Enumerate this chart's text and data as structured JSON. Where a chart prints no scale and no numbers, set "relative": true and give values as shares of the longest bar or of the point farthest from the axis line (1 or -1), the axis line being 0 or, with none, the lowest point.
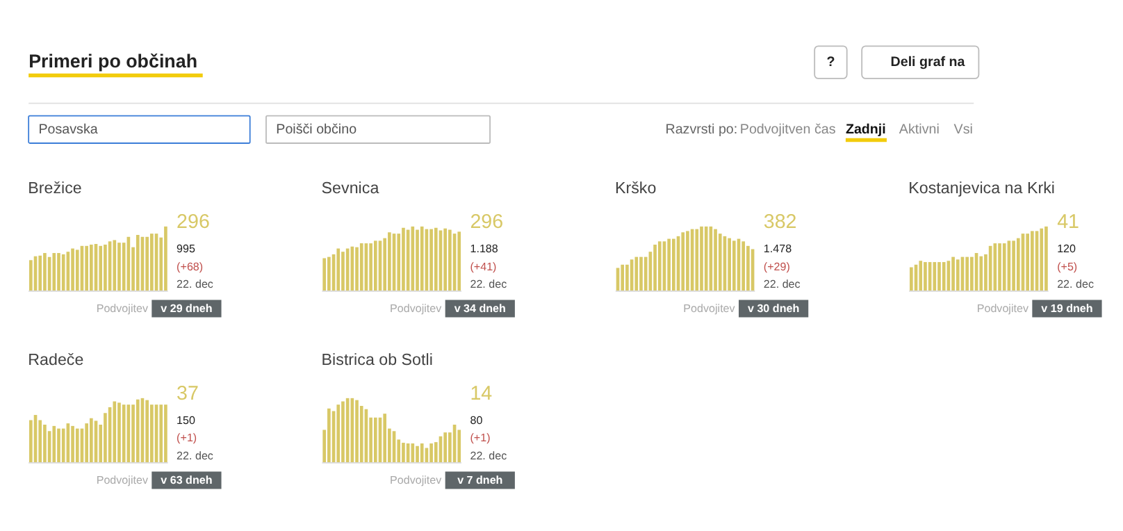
{
  "chart_data": [
    {
      "type": "other",
      "title": "Primeri po občinah",
      "annotations": [
        "?",
        "Deli graf na",
        "Posavska",
        "Poišči občino",
        "Razvrsti po:",
        "Podvojitven čas",
        "Zadnji",
        "Aktivni",
        "Vsi"
      ]
    },
    {
      "type": "bar",
      "relative": true,
      "title": "Brežice",
      "color": "#d8c866",
      "categories": [
        null,
        null,
        null,
        null,
        null,
        null,
        null,
        null,
        null,
        null,
        null,
        null,
        null,
        null,
        null,
        null,
        null,
        null,
        null,
        null,
        null,
        null,
        null,
        null,
        null,
        null,
        null,
        null,
        null,
        null
      ],
      "values": [
        0.48,
        0.54,
        0.55,
        0.59,
        0.53,
        0.59,
        0.59,
        0.57,
        0.61,
        0.66,
        0.64,
        0.7,
        0.7,
        0.72,
        0.73,
        0.7,
        0.72,
        0.77,
        0.79,
        0.75,
        0.75,
        0.84,
        0.68,
        0.87,
        0.84,
        0.84,
        0.89,
        0.89,
        0.83,
        1
      ],
      "annotations": [
        "296",
        "995",
        "(+68)",
        "22. dec",
        "Podvojitev",
        "v 29 dneh"
      ]
    },
    {
      "type": "bar",
      "relative": true,
      "title": "Sevnica",
      "color": "#d8c866",
      "categories": [
        null,
        null,
        null,
        null,
        null,
        null,
        null,
        null,
        null,
        null,
        null,
        null,
        null,
        null,
        null,
        null,
        null,
        null,
        null,
        null,
        null,
        null,
        null,
        null,
        null,
        null,
        null,
        null,
        null,
        null
      ],
      "values": [
        0.51,
        0.53,
        0.57,
        0.66,
        0.61,
        0.66,
        0.69,
        0.68,
        0.74,
        0.74,
        0.74,
        0.78,
        0.78,
        0.82,
        0.91,
        0.89,
        0.89,
        0.98,
        0.95,
        1,
        0.95,
        1,
        0.96,
        0.96,
        0.98,
        0.94,
        0.97,
        0.95,
        0.89,
        0.92
      ],
      "annotations": [
        "296",
        "1.188",
        "(+41)",
        "22. dec",
        "Podvojitev",
        "v 34 dneh"
      ]
    },
    {
      "type": "bar",
      "relative": true,
      "title": "Krško",
      "color": "#d8c866",
      "categories": [
        null,
        null,
        null,
        null,
        null,
        null,
        null,
        null,
        null,
        null,
        null,
        null,
        null,
        null,
        null,
        null,
        null,
        null,
        null,
        null,
        null,
        null,
        null,
        null,
        null,
        null,
        null,
        null,
        null,
        null
      ],
      "values": [
        0.36,
        0.41,
        0.41,
        0.49,
        0.53,
        0.53,
        0.53,
        0.61,
        0.72,
        0.77,
        0.77,
        0.81,
        0.81,
        0.85,
        0.91,
        0.93,
        0.96,
        0.96,
        1,
        1,
        1,
        0.96,
        0.89,
        0.85,
        0.82,
        0.78,
        0.81,
        0.77,
        0.7,
        0.65
      ],
      "annotations": [
        "382",
        "1.478",
        "(+29)",
        "22. dec",
        "Podvojitev",
        "v 30 dneh"
      ]
    },
    {
      "type": "bar",
      "relative": true,
      "title": "Kostanjevica na Krki",
      "color": "#d8c866",
      "categories": [
        null,
        null,
        null,
        null,
        null,
        null,
        null,
        null,
        null,
        null,
        null,
        null,
        null,
        null,
        null,
        null,
        null,
        null,
        null,
        null,
        null,
        null,
        null,
        null,
        null,
        null,
        null,
        null,
        null,
        null
      ],
      "values": [
        0.37,
        0.41,
        0.47,
        0.45,
        0.45,
        0.45,
        0.45,
        0.45,
        0.47,
        0.53,
        0.49,
        0.53,
        0.53,
        0.53,
        0.59,
        0.54,
        0.57,
        0.7,
        0.74,
        0.74,
        0.74,
        0.78,
        0.78,
        0.82,
        0.89,
        0.89,
        0.93,
        0.93,
        0.97,
        1
      ],
      "annotations": [
        "41",
        "120",
        "(+5)",
        "22. dec",
        "Podvojitev",
        "v 19 dneh"
      ]
    },
    {
      "type": "bar",
      "relative": true,
      "title": "Radeče",
      "color": "#d8c866",
      "categories": [
        null,
        null,
        null,
        null,
        null,
        null,
        null,
        null,
        null,
        null,
        null,
        null,
        null,
        null,
        null,
        null,
        null,
        null,
        null,
        null,
        null,
        null,
        null,
        null,
        null,
        null,
        null,
        null,
        null,
        null
      ],
      "values": [
        0.66,
        0.74,
        0.66,
        0.59,
        0.49,
        0.57,
        0.53,
        0.53,
        0.61,
        0.57,
        0.53,
        0.53,
        0.61,
        0.69,
        0.65,
        0.59,
        0.77,
        0.86,
        0.95,
        0.93,
        0.9,
        0.9,
        0.9,
        0.98,
        1,
        0.97,
        0.9,
        0.9,
        0.9,
        0.9
      ],
      "annotations": [
        "37",
        "150",
        "(+1)",
        "22. dec",
        "Podvojitev",
        "v 63 dneh"
      ]
    },
    {
      "type": "bar",
      "relative": true,
      "title": "Bistrica ob Sotli",
      "color": "#d8c866",
      "categories": [
        null,
        null,
        null,
        null,
        null,
        null,
        null,
        null,
        null,
        null,
        null,
        null,
        null,
        null,
        null,
        null,
        null,
        null,
        null,
        null,
        null,
        null,
        null,
        null,
        null,
        null,
        null,
        null,
        null,
        null
      ],
      "values": [
        0.51,
        0.84,
        0.8,
        0.9,
        0.95,
        1,
        1,
        0.97,
        0.88,
        0.83,
        0.7,
        0.7,
        0.7,
        0.76,
        0.53,
        0.49,
        0.36,
        0.31,
        0.3,
        0.3,
        0.26,
        0.3,
        0.23,
        0.3,
        0.32,
        0.41,
        0.47,
        0.47,
        0.59,
        0.51
      ],
      "annotations": [
        "14",
        "80",
        "(+1)",
        "22. dec",
        "Podvojitev",
        "v 7 dneh"
      ]
    }
  ]
}
